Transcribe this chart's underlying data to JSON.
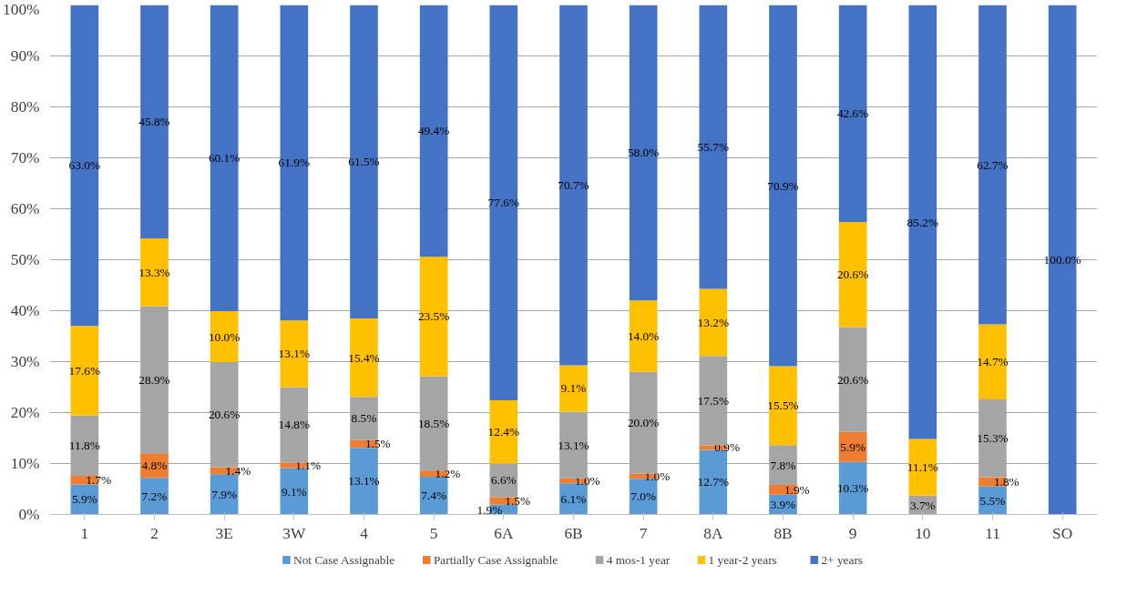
{
  "chart_data": {
    "type": "bar",
    "stacked": true,
    "categories": [
      "1",
      "2",
      "3E",
      "3W",
      "4",
      "5",
      "6A",
      "6B",
      "7",
      "8A",
      "8B",
      "9",
      "10",
      "11",
      "SO"
    ],
    "series": [
      {
        "name": "Not Case Assignable",
        "color": "#5b9bd5",
        "values": [
          5.9,
          7.2,
          7.9,
          9.1,
          13.1,
          7.4,
          1.9,
          6.1,
          7.0,
          12.7,
          3.9,
          10.3,
          null,
          5.5,
          null
        ],
        "value_labels": [
          "5.9%",
          "7.2%",
          "7.9%",
          "9.1%",
          "13.1%",
          "7.4%",
          "1.9%",
          "6.1%",
          "7.0%",
          "12.7%",
          "3.9%",
          "10.3%",
          null,
          "5.5%",
          null
        ]
      },
      {
        "name": "Partially Case Assignable",
        "color": "#ed7d31",
        "values": [
          1.7,
          4.8,
          1.4,
          1.1,
          1.5,
          1.2,
          1.5,
          1.0,
          1.0,
          0.9,
          1.9,
          5.9,
          null,
          1.8,
          null
        ],
        "value_labels": [
          "1.7%",
          "4.8%",
          "1.4%",
          "1.1%",
          "1.5%",
          "1.2%",
          "1.5%",
          "1.0%",
          "1.0%",
          "0.9%",
          "1.9%",
          "5.9%",
          null,
          "1.8%",
          null
        ]
      },
      {
        "name": "4 mos-1 year",
        "color": "#a5a5a5",
        "values": [
          11.8,
          28.9,
          20.6,
          14.8,
          8.5,
          18.5,
          6.6,
          13.1,
          20.0,
          17.5,
          7.8,
          20.6,
          3.7,
          15.3,
          null
        ],
        "value_labels": [
          "11.8%",
          "28.9%",
          "20.6%",
          "14.8%",
          "8.5%",
          "18.5%",
          "6.6%",
          "13.1%",
          "20.0%",
          "17.5%",
          "7.8%",
          "20.6%",
          "3.7%",
          "15.3%",
          null
        ]
      },
      {
        "name": "1 year-2 years",
        "color": "#ffc000",
        "values": [
          17.6,
          13.3,
          10.0,
          13.1,
          15.4,
          23.5,
          12.4,
          9.1,
          14.0,
          13.2,
          15.5,
          20.6,
          11.1,
          14.7,
          null
        ],
        "value_labels": [
          "17.6%",
          "13.3%",
          "10.0%",
          "13.1%",
          "15.4%",
          "23.5%",
          "12.4%",
          "9.1%",
          "14.0%",
          "13.2%",
          "15.5%",
          "20.6%",
          "11.1%",
          "14.7%",
          null
        ]
      },
      {
        "name": "2+ years",
        "color": "#4472c4",
        "values": [
          63.0,
          45.8,
          60.1,
          61.9,
          61.5,
          49.4,
          77.6,
          70.7,
          58.0,
          55.7,
          70.9,
          42.6,
          85.2,
          62.7,
          100.0
        ],
        "value_labels": [
          "63.0%",
          "45.8%",
          "60.1%",
          "61.9%",
          "61.5%",
          "49.4%",
          "77.6%",
          "70.7%",
          "58.0%",
          "55.7%",
          "70.9%",
          "42.6%",
          "85.2%",
          "62.7%",
          "100.0%"
        ]
      }
    ],
    "ylim": [
      0,
      100
    ],
    "yticks": [
      {
        "value": 0,
        "label": "0%"
      },
      {
        "value": 10,
        "label": "10%"
      },
      {
        "value": 20,
        "label": "20%"
      },
      {
        "value": 30,
        "label": "30%"
      },
      {
        "value": 40,
        "label": "40%"
      },
      {
        "value": 50,
        "label": "50%"
      },
      {
        "value": 60,
        "label": "60%"
      },
      {
        "value": 70,
        "label": "70%"
      },
      {
        "value": 80,
        "label": "80%"
      },
      {
        "value": 90,
        "label": "90%"
      },
      {
        "value": 100,
        "label": "100%"
      }
    ],
    "grid": "y",
    "legend": "bottom"
  }
}
